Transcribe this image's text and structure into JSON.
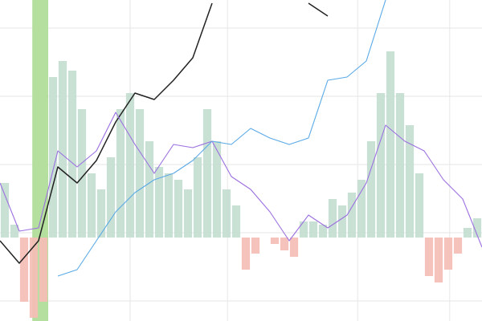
{
  "chart_data": [
    {
      "type": "bar",
      "x": [
        1,
        3,
        5,
        7,
        9,
        11,
        13,
        15,
        17,
        19,
        21,
        23,
        25,
        27,
        29,
        31,
        33,
        35,
        37,
        39,
        41,
        43,
        45,
        47,
        49,
        51,
        53,
        55,
        57,
        59,
        61,
        63,
        65,
        67,
        69,
        71,
        73,
        75,
        77,
        79,
        81,
        83,
        85,
        87,
        89,
        91,
        93,
        95,
        97,
        99
      ],
      "values": [
        17,
        4,
        -20,
        -25,
        -20,
        50,
        55,
        52,
        40,
        20,
        15,
        25,
        40,
        45,
        40,
        30,
        22,
        20,
        18,
        15,
        25,
        40,
        30,
        15,
        10,
        -10,
        -5,
        0,
        -2,
        -4,
        -6,
        5,
        5,
        4,
        12,
        10,
        14,
        18,
        30,
        45,
        58,
        45,
        35,
        20,
        -12,
        -14,
        -10,
        -5,
        3,
        6
      ],
      "color": "#c3ddd0",
      "negative_color": "#f5bcb5",
      "xlim": [
        0,
        100
      ],
      "ylim": [
        -26,
        74
      ]
    },
    {
      "type": "line",
      "x": [
        0,
        4,
        8,
        12,
        16,
        20,
        24,
        28,
        32,
        36,
        40,
        44,
        48,
        52,
        56,
        60,
        64,
        68,
        72,
        76,
        80,
        84,
        88,
        92,
        96,
        100
      ],
      "series": [
        {
          "color": "#222222",
          "values": [
            25,
            18,
            25,
            48,
            43,
            50,
            62,
            71,
            69,
            75,
            82,
            99,
            null,
            null,
            null,
            null,
            99,
            95,
            null,
            null,
            null,
            null,
            null,
            null,
            null,
            null
          ]
        },
        {
          "color": "#9b6fe0",
          "values": [
            43,
            28,
            29,
            53,
            48,
            53,
            65,
            55,
            46,
            55,
            54,
            56,
            45,
            41,
            34,
            25,
            33,
            29,
            33,
            43,
            61,
            56,
            53,
            44,
            38,
            23
          ]
        },
        {
          "color": "#5aa9e6",
          "values": [
            null,
            null,
            null,
            14,
            16,
            25,
            34,
            40,
            44,
            46,
            50,
            56,
            55,
            60,
            57,
            55,
            57,
            75,
            76,
            81,
            100,
            null,
            null,
            null,
            null,
            null
          ]
        }
      ],
      "highlight": {
        "x": [
          6.7,
          10
        ],
        "color": "#b4df9e"
      },
      "xlim": [
        0,
        100
      ],
      "ylim": [
        0,
        100
      ],
      "xticks": [
        27,
        47.2,
        74.2,
        93.3
      ],
      "yticks": [
        91.25,
        70,
        48.75,
        27.5,
        6.25
      ],
      "grid": true
    }
  ]
}
